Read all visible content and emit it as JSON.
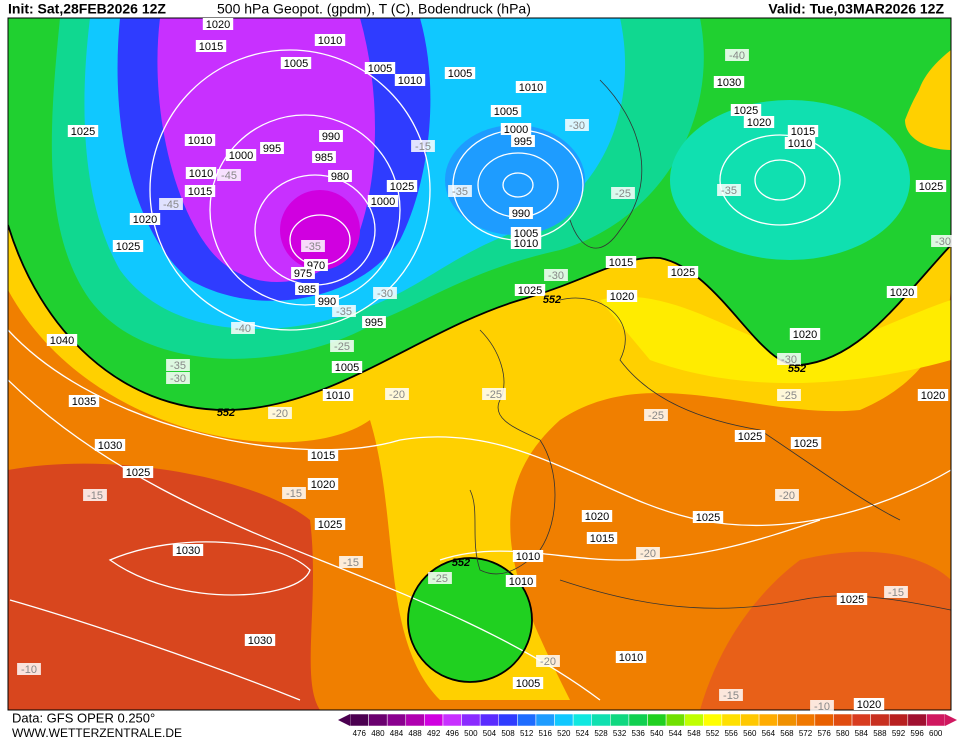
{
  "header": {
    "init": "Init: Sat,28FEB2026 12Z",
    "title": "500 hPa Geopot. (gpdm), T (C), Bodendruck (hPa)",
    "valid": "Valid: Tue,03MAR2026 12Z"
  },
  "map": {
    "pressure_labels": [
      "1020",
      "1015",
      "1010",
      "1005",
      "1005",
      "1010",
      "1005",
      "1010",
      "1005",
      "1000",
      "995",
      "990",
      "985",
      "980",
      "1000",
      "995",
      "1010",
      "1010",
      "1015",
      "1025",
      "1020",
      "1025",
      "1025",
      "1000",
      "990",
      "1005",
      "1010",
      "970",
      "975",
      "985",
      "990",
      "995",
      "1005",
      "1010",
      "1025",
      "1015",
      "1020",
      "1025",
      "1040",
      "1035",
      "1030",
      "1025",
      "1015",
      "1020",
      "1025",
      "1030",
      "1030",
      "1020",
      "1015",
      "1010",
      "1010",
      "1025",
      "1025",
      "1025",
      "1020",
      "1020",
      "1020",
      "1010",
      "1005",
      "1025",
      "1020",
      "1025",
      "1030",
      "1025",
      "1020",
      "1015",
      "1010"
    ],
    "temperature_labels": [
      "-45",
      "-45",
      "-35",
      "-40",
      "-30",
      "-35",
      "-25",
      "-35",
      "-30",
      "-30",
      "-30",
      "-35",
      "-25",
      "-40",
      "-35",
      "-30",
      "-20",
      "-20",
      "-25",
      "-25",
      "-30",
      "-25",
      "-20",
      "-15",
      "-15",
      "-15",
      "-25",
      "-20",
      "-20",
      "-15",
      "-15",
      "-10",
      "-10",
      "-15"
    ],
    "geopotential_labels": [
      "552",
      "552",
      "552",
      "552"
    ]
  },
  "colorbar": {
    "values": [
      476,
      480,
      484,
      488,
      492,
      496,
      500,
      504,
      508,
      512,
      516,
      520,
      524,
      528,
      532,
      536,
      540,
      544,
      548,
      552,
      556,
      560,
      564,
      568,
      572,
      576,
      580,
      584,
      588,
      592,
      596,
      600
    ],
    "colors": [
      "#4b0050",
      "#6a006f",
      "#8a008f",
      "#b000b0",
      "#d000e0",
      "#c830ff",
      "#8a2bff",
      "#5a2bff",
      "#2f3cff",
      "#1e6cff",
      "#1e9cff",
      "#10c8ff",
      "#10e8e0",
      "#10e0b0",
      "#10d880",
      "#10d050",
      "#20d020",
      "#70e000",
      "#c0ff00",
      "#ffff00",
      "#ffe000",
      "#ffc800",
      "#ffac00",
      "#f09000",
      "#f07800",
      "#e86000",
      "#e04c10",
      "#d83c20",
      "#c83020",
      "#b82020",
      "#a01030",
      "#d01860"
    ]
  },
  "footer": {
    "source": "Data: GFS OPER 0.250°",
    "site": "WWW.WETTERZENTRALE.DE"
  }
}
